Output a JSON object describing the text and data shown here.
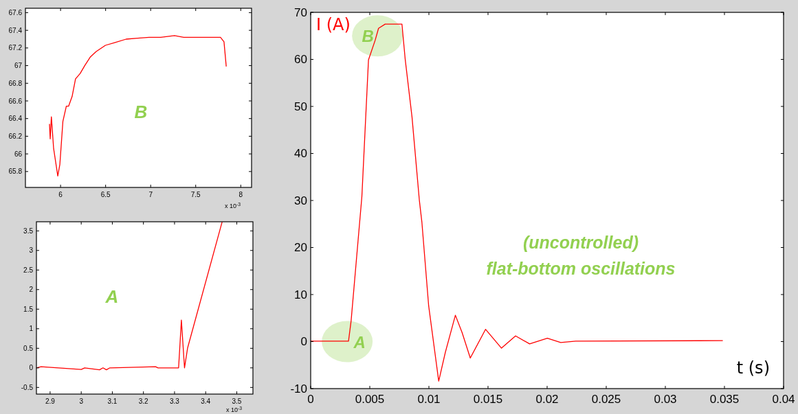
{
  "chart_data": [
    {
      "type": "line",
      "x": [
        5.877,
        5.885,
        5.898,
        5.923,
        5.969,
        5.992,
        6.026,
        6.064,
        6.089,
        6.128,
        6.166,
        6.217,
        6.268,
        6.332,
        6.396,
        6.498,
        6.6,
        6.728,
        6.856,
        6.983,
        7.111,
        7.264,
        7.367,
        7.622,
        7.775,
        7.814,
        7.839
      ],
      "series": [
        {
          "color": "#ff0000",
          "values": [
            66.34,
            66.17,
            66.42,
            66.06,
            65.75,
            65.88,
            66.37,
            66.54,
            66.54,
            66.65,
            66.85,
            66.91,
            67.0,
            67.1,
            67.16,
            67.23,
            67.26,
            67.3,
            67.31,
            67.32,
            67.32,
            67.34,
            67.32,
            67.32,
            67.32,
            67.27,
            66.99
          ]
        }
      ],
      "xlim": [
        5.61,
        8.12
      ],
      "ylim": [
        65.62,
        67.65
      ],
      "xticks": [
        6,
        6.5,
        7,
        7.5,
        8
      ],
      "yticks": [
        65.8,
        66,
        66.2,
        66.4,
        66.6,
        66.8,
        67,
        67.2,
        67.4,
        67.6
      ],
      "grid": false,
      "annotations": [
        "B",
        "x 10$^{-3}$"
      ]
    },
    {
      "type": "line",
      "x": [
        0,
        0.0032,
        0.00342,
        0.00433,
        0.00489,
        0.00546,
        0.00574,
        0.0063,
        0.00772,
        0.008,
        0.00857,
        0.00919,
        0.00941,
        0.00998,
        0.01083,
        0.01139,
        0.01224,
        0.01281,
        0.0135,
        0.01479,
        0.01614,
        0.01733,
        0.01852,
        0.02002,
        0.02115,
        0.02242,
        0.03486
      ],
      "series": [
        {
          "color": "#ff0000",
          "values": [
            0.1,
            0.1,
            4.4,
            30.8,
            59.9,
            64.1,
            66.6,
            67.5,
            67.5,
            59.9,
            47.8,
            30.1,
            25.3,
            7.6,
            -8.4,
            -2.3,
            5.6,
            1.9,
            -3.5,
            2.6,
            -1.4,
            1.2,
            -0.5,
            0.7,
            -0.2,
            0.1,
            0.2
          ]
        }
      ],
      "xlim": [
        0,
        0.04
      ],
      "ylim": [
        -10,
        70
      ],
      "xticks": [
        0,
        0.005,
        0.01,
        0.015,
        0.02,
        0.025,
        0.03,
        0.035,
        0.04
      ],
      "yticks": [
        -10,
        0,
        10,
        20,
        30,
        40,
        50,
        60,
        70
      ],
      "grid": false,
      "xlabel": "t (s)",
      "ylabel": "I (A)",
      "annotations": [
        {
          "text": "B",
          "x": 0.00565,
          "y": 65
        },
        {
          "text": "A",
          "x": 0.00309,
          "y": 0
        },
        "(uncontrolled)",
        "flat-bottom oscillations"
      ]
    },
    {
      "type": "line",
      "x": [
        2.856,
        2.871,
        3.0,
        3.011,
        3.059,
        3.07,
        3.081,
        3.092,
        3.239,
        3.247,
        3.313,
        3.322,
        3.332,
        3.342,
        3.453
      ],
      "series": [
        {
          "color": "#ff0000",
          "values": [
            0,
            0.03,
            -0.04,
            0,
            -0.05,
            0,
            -0.05,
            0,
            0.03,
            0,
            0,
            1.22,
            0,
            0.51,
            3.73
          ]
        }
      ],
      "xlim": [
        2.856,
        3.552
      ],
      "ylim": [
        -0.67,
        3.733
      ],
      "xticks": [
        2.9,
        3,
        3.1,
        3.2,
        3.3,
        3.4,
        3.5
      ],
      "yticks": [
        -0.5,
        0,
        0.5,
        1,
        1.5,
        2,
        2.5,
        3,
        3.5
      ],
      "grid": false,
      "annotations": [
        "A",
        "x 10$^{-3}$"
      ]
    }
  ]
}
